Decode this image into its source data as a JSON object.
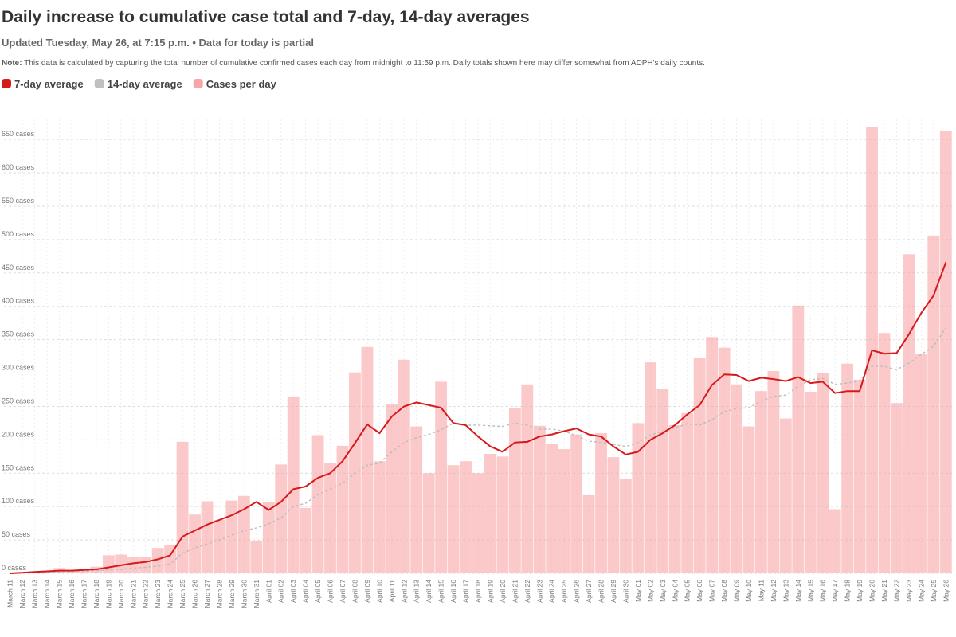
{
  "chart_data": {
    "type": "bar",
    "title": "Daily increase to cumulative case total and 7-day, 14-day averages",
    "subtitle": "Updated Tuesday, May 26, at 7:15 p.m. • Data for today is partial",
    "note_label": "Note:",
    "note": "This data is calculated by capturing the total number of cumulative confirmed cases each day from midnight to 11:59 p.m. Daily totals shown here may differ somewhat from ADPH's daily counts.",
    "categories": [
      "March 11",
      "March 12",
      "March 13",
      "March 14",
      "March 15",
      "March 16",
      "March 17",
      "March 18",
      "March 19",
      "March 20",
      "March 21",
      "March 22",
      "March 23",
      "March 24",
      "March 25",
      "March 26",
      "March 27",
      "March 28",
      "March 29",
      "March 30",
      "March 31",
      "April 01",
      "April 02",
      "April 03",
      "April 04",
      "April 05",
      "April 06",
      "April 07",
      "April 08",
      "April 09",
      "April 10",
      "April 11",
      "April 12",
      "April 13",
      "April 14",
      "April 15",
      "April 16",
      "April 17",
      "April 18",
      "April 19",
      "April 20",
      "April 21",
      "April 22",
      "April 23",
      "April 24",
      "April 25",
      "April 26",
      "April 27",
      "April 28",
      "April 29",
      "April 30",
      "May 01",
      "May 02",
      "May 03",
      "May 04",
      "May 05",
      "May 06",
      "May 07",
      "May 08",
      "May 09",
      "May 10",
      "May 11",
      "May 12",
      "May 13",
      "May 14",
      "May 15",
      "May 16",
      "May 17",
      "May 18",
      "May 19",
      "May 20",
      "May 21",
      "May 22",
      "May 23",
      "May 24",
      "May 25",
      "May 26"
    ],
    "series": [
      {
        "name": "7-day average",
        "type": "line",
        "color": "#d7191c",
        "dashed": false,
        "values": [
          0,
          1,
          2,
          3,
          4,
          4,
          5,
          6,
          9,
          12,
          15,
          17,
          21,
          27,
          55,
          64,
          73,
          80,
          87,
          96,
          107,
          95,
          107,
          126,
          130,
          143,
          150,
          168,
          195,
          223,
          210,
          235,
          250,
          256,
          252,
          248,
          225,
          222,
          205,
          190,
          182,
          196,
          197,
          205,
          208,
          213,
          217,
          208,
          205,
          190,
          178,
          182,
          200,
          210,
          222,
          238,
          252,
          282,
          298,
          297,
          288,
          293,
          291,
          288,
          294,
          285,
          287,
          270,
          273,
          273,
          334,
          329,
          330,
          358,
          390,
          416,
          466
        ]
      },
      {
        "name": "14-day average",
        "type": "line",
        "color": "#bbbbbb",
        "dashed": true,
        "values": [
          0,
          1,
          1,
          2,
          2,
          3,
          3,
          4,
          5,
          6,
          8,
          9,
          11,
          14,
          30,
          38,
          44,
          50,
          57,
          64,
          68,
          74,
          83,
          100,
          105,
          118,
          126,
          135,
          150,
          162,
          165,
          182,
          196,
          203,
          208,
          215,
          225,
          222,
          222,
          221,
          220,
          225,
          222,
          216,
          216,
          213,
          206,
          198,
          196,
          193,
          190,
          196,
          207,
          213,
          218,
          224,
          222,
          230,
          242,
          247,
          248,
          258,
          265,
          267,
          280,
          290,
          292,
          283,
          285,
          288,
          310,
          310,
          305,
          315,
          328,
          340,
          368
        ]
      },
      {
        "name": "Cases per day",
        "type": "bar",
        "color": "#f9a5a5",
        "values": [
          1,
          2,
          3,
          4,
          8,
          5,
          7,
          10,
          27,
          28,
          25,
          25,
          38,
          43,
          197,
          88,
          108,
          80,
          109,
          116,
          49,
          107,
          163,
          265,
          98,
          207,
          165,
          191,
          301,
          339,
          168,
          253,
          320,
          220,
          150,
          287,
          162,
          168,
          150,
          179,
          175,
          248,
          283,
          221,
          194,
          186,
          208,
          117,
          210,
          174,
          142,
          225,
          316,
          276,
          222,
          240,
          323,
          354,
          338,
          283,
          220,
          273,
          303,
          232,
          401,
          272,
          300,
          96,
          314,
          290,
          669,
          360,
          255,
          478,
          328,
          506,
          663
        ]
      }
    ],
    "ylim": [
      0,
      680
    ],
    "yticks": [
      {
        "value": 0,
        "label": "0 cases"
      },
      {
        "value": 50,
        "label": "50 cases"
      },
      {
        "value": 100,
        "label": "100 cases"
      },
      {
        "value": 150,
        "label": "150 cases"
      },
      {
        "value": 200,
        "label": "200 cases"
      },
      {
        "value": 250,
        "label": "250 cases"
      },
      {
        "value": 300,
        "label": "300 cases"
      },
      {
        "value": 350,
        "label": "350 cases"
      },
      {
        "value": 400,
        "label": "400 cases"
      },
      {
        "value": 450,
        "label": "450 cases"
      },
      {
        "value": 500,
        "label": "500 cases"
      },
      {
        "value": 550,
        "label": "550 cases"
      },
      {
        "value": 600,
        "label": "600 cases"
      },
      {
        "value": 650,
        "label": "650 cases"
      }
    ],
    "grid": true
  }
}
